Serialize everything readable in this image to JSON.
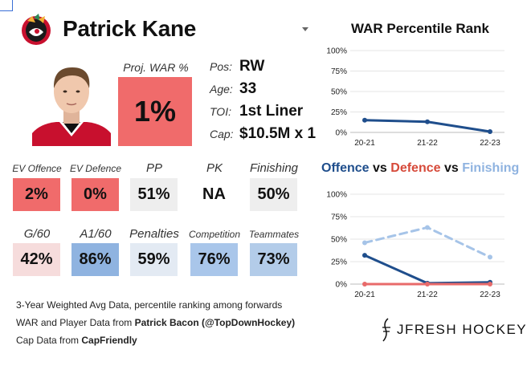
{
  "player": {
    "name": "Patrick Kane",
    "proj_war_label": "Proj. WAR %",
    "proj_war_value": "1%",
    "info": [
      {
        "label": "Pos:",
        "value": "RW"
      },
      {
        "label": "Age:",
        "value": "33"
      },
      {
        "label": "TOI:",
        "value": "1st Liner"
      },
      {
        "label": "Cap:",
        "value": "$10.5M x 1"
      }
    ]
  },
  "stats_row1": [
    {
      "label": "EV Offence",
      "value": "2%",
      "color": "#f06b6b",
      "small": true
    },
    {
      "label": "EV Defence",
      "value": "0%",
      "color": "#f06b6b",
      "small": true
    },
    {
      "label": "PP",
      "value": "51%",
      "color": "#eeeeee",
      "small": false
    },
    {
      "label": "PK",
      "value": "NA",
      "color": "#ffffff",
      "small": false
    },
    {
      "label": "Finishing",
      "value": "50%",
      "color": "#eeeeee",
      "small": false
    }
  ],
  "stats_row2": [
    {
      "label": "G/60",
      "value": "42%",
      "color": "#f6dcdc",
      "small": false
    },
    {
      "label": "A1/60",
      "value": "86%",
      "color": "#8fb3e0",
      "small": false
    },
    {
      "label": "Penalties",
      "value": "59%",
      "color": "#e3eaf3",
      "small": false
    },
    {
      "label": "Competition",
      "value": "76%",
      "color": "#a9c6ea",
      "small": true
    },
    {
      "label": "Teammates",
      "value": "73%",
      "color": "#b3cce9",
      "small": true
    }
  ],
  "footer": {
    "line1": "3-Year Weighted Avg Data, percentile ranking among forwards",
    "line2_prefix": "WAR and Player Data from ",
    "line2_bold": "Patrick Bacon (@TopDownHockey)",
    "line3_prefix": "Cap Data from ",
    "line3_bold": "CapFriendly"
  },
  "brand": {
    "name": "JFRESH HOCKEY"
  },
  "chart_data": [
    {
      "type": "line",
      "title": "WAR Percentile Rank",
      "categories": [
        "20-21",
        "21-22",
        "22-23"
      ],
      "yticks": [
        "0%",
        "25%",
        "50%",
        "75%",
        "100%"
      ],
      "ylim": [
        0,
        100
      ],
      "grid": true,
      "series": [
        {
          "values": [
            15,
            13,
            1
          ],
          "color": "#1f4e8c",
          "style": "solid"
        }
      ]
    },
    {
      "type": "line",
      "title_parts": [
        {
          "text": "Offence",
          "color": "#1f4e8c"
        },
        {
          "text": " vs ",
          "color": "#111111"
        },
        {
          "text": "Defence",
          "color": "#d64a3a"
        },
        {
          "text": " vs ",
          "color": "#111111"
        },
        {
          "text": "Finishing",
          "color": "#8fb3e0"
        }
      ],
      "categories": [
        "20-21",
        "21-22",
        "22-23"
      ],
      "yticks": [
        "0%",
        "25%",
        "50%",
        "75%",
        "100%"
      ],
      "ylim": [
        0,
        100
      ],
      "grid": true,
      "series": [
        {
          "name": "Offence",
          "values": [
            32,
            1,
            2
          ],
          "color": "#1f4e8c",
          "style": "solid"
        },
        {
          "name": "Defence",
          "values": [
            0,
            0,
            0
          ],
          "color": "#e86a6a",
          "style": "solid"
        },
        {
          "name": "Finishing",
          "values": [
            46,
            63,
            30
          ],
          "color": "#a6c4e8",
          "style": "dashed"
        }
      ]
    }
  ]
}
